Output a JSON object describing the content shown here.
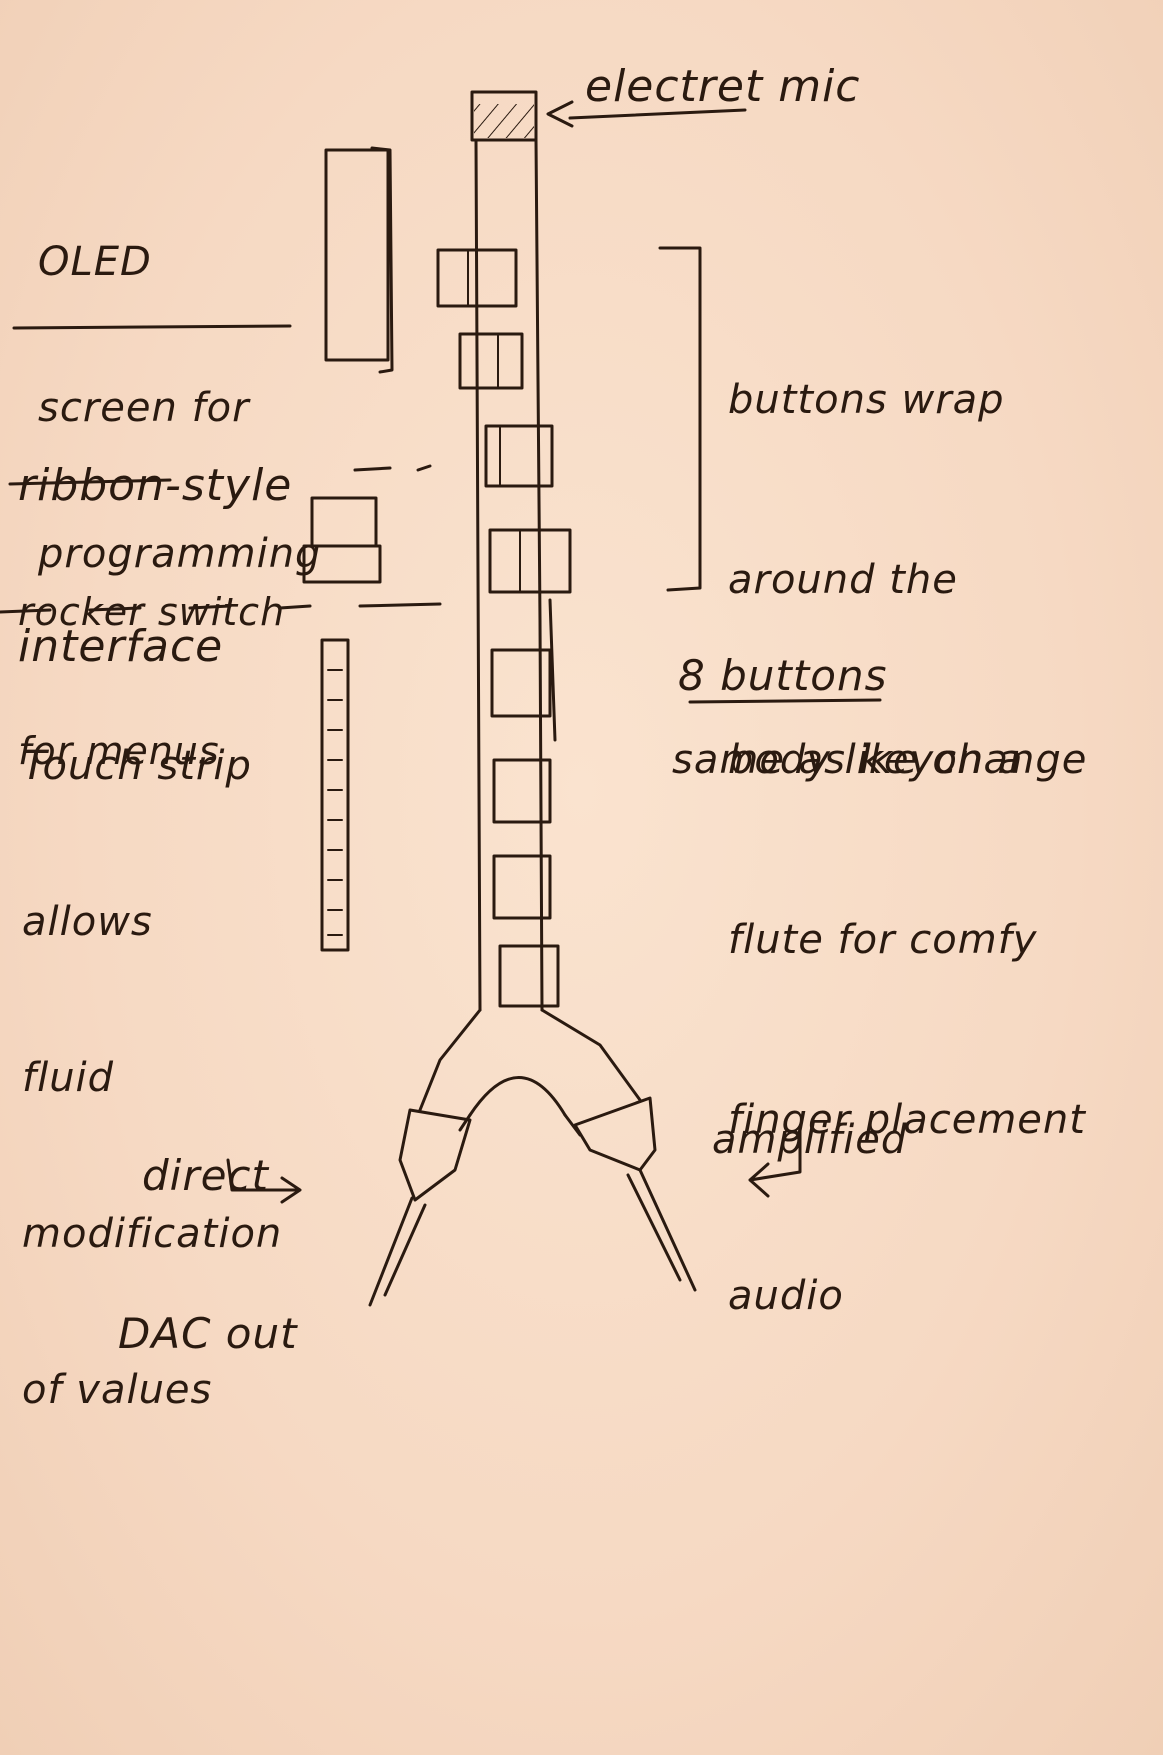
{
  "labels": {
    "electret_mic": "electret mic",
    "oled": [
      "OLED",
      "screen for",
      "programming"
    ],
    "ribbon": [
      "ribbon-style",
      "interface"
    ],
    "rocker": [
      "rocker switch",
      "for menus"
    ],
    "touch_strip": [
      "Touch strip",
      "allows",
      "fluid",
      "modification",
      "of values"
    ],
    "buttons_wrap": [
      "buttons wrap",
      "around the",
      "body like on a",
      "flute for comfy",
      "finger placement"
    ],
    "eight_buttons": "8 buttons",
    "same_as": "same as keychange",
    "direct_dac": [
      "direct",
      "DAC out"
    ],
    "amplified_audio": [
      "amplified",
      "audio"
    ]
  }
}
